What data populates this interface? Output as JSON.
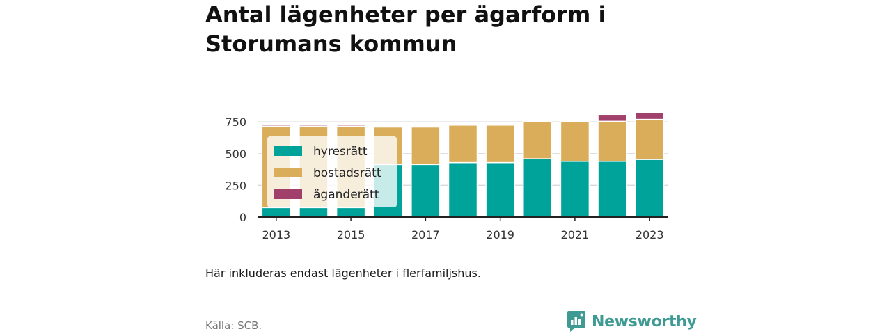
{
  "title": "Antal lägenheter per ägarform i Storumans kommun",
  "note": "Här inkluderas endast lägenheter i flerfamiljshus.",
  "source": "Källa: SCB.",
  "brand": {
    "name": "Newsworthy",
    "icon": "newsworthy-logo-icon",
    "color": "#3e9a93"
  },
  "chart_data": {
    "type": "bar",
    "stacked": true,
    "categories": [
      "2013",
      "2014",
      "2015",
      "2016",
      "2017",
      "2018",
      "2019",
      "2020",
      "2021",
      "2022",
      "2023"
    ],
    "x_tick_labels": [
      "2013",
      "2015",
      "2017",
      "2019",
      "2021",
      "2023"
    ],
    "y_ticks": [
      0,
      250,
      500,
      750
    ],
    "ylim": [
      0,
      850
    ],
    "grid": true,
    "legend_position": "top-left",
    "series": [
      {
        "name": "hyresrätt",
        "color": "#00a39a",
        "values": [
          75,
          75,
          75,
          415,
          415,
          430,
          430,
          460,
          440,
          440,
          455
        ]
      },
      {
        "name": "bostadsrätt",
        "color": "#d9ad5a",
        "values": [
          640,
          640,
          640,
          295,
          295,
          295,
          295,
          295,
          315,
          315,
          315
        ]
      },
      {
        "name": "äganderätt",
        "color": "#a1406a",
        "values": [
          10,
          10,
          10,
          0,
          0,
          0,
          0,
          0,
          0,
          55,
          55
        ]
      }
    ]
  }
}
